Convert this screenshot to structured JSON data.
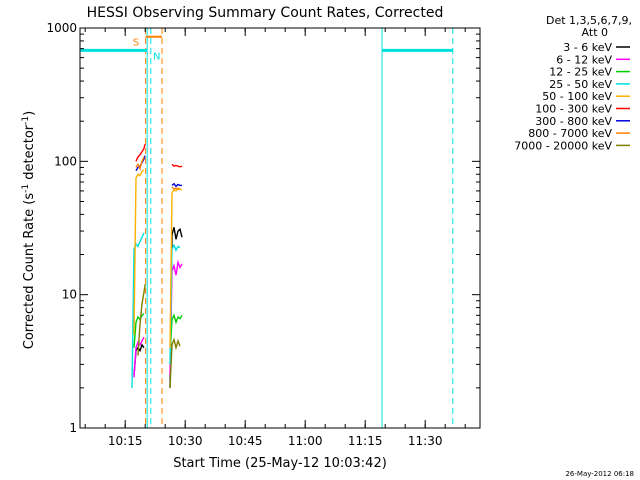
{
  "chart_data": {
    "type": "line",
    "title": "HESSI Observing Summary Count Rates, Corrected",
    "xlabel": "Start Time (25-May-12 10:03:42)",
    "ylabel_main": "Corrected Count Rate (s",
    "ylabel_sup1": "-1",
    "ylabel_mid": " detector",
    "ylabel_sup2": "-1",
    "ylabel_end": ")",
    "y_scale": "log",
    "ylim": [
      1,
      1000
    ],
    "xlim_minutes": [
      0,
      100
    ],
    "x_ticks": [
      {
        "label": "10:15",
        "minute": 11.3
      },
      {
        "label": "10:30",
        "minute": 26.3
      },
      {
        "label": "10:45",
        "minute": 41.3
      },
      {
        "label": "11:00",
        "minute": 56.3
      },
      {
        "label": "11:15",
        "minute": 71.3
      },
      {
        "label": "11:30",
        "minute": 86.3
      }
    ],
    "y_ticks": [
      {
        "label": "1",
        "value": 1
      },
      {
        "label": "10",
        "value": 10
      },
      {
        "label": "100",
        "value": 100
      },
      {
        "label": "1000",
        "value": 1000
      }
    ],
    "legend_header": [
      "Det 1,3,5,6,7,9,",
      "Att 0"
    ],
    "legend_position": "right",
    "series": [
      {
        "name": "3 - 6 keV",
        "color": "#000000",
        "segments": [
          [
            [
              13.5,
              2.5
            ],
            [
              14.0,
              3.8
            ],
            [
              14.5,
              4.0
            ],
            [
              15.0,
              3.8
            ],
            [
              15.5,
              4.2
            ],
            [
              16.0,
              4.0
            ]
          ],
          [
            [
              22.5,
              2.0
            ],
            [
              23.0,
              28
            ],
            [
              23.5,
              32
            ],
            [
              24.0,
              26
            ],
            [
              24.5,
              30
            ],
            [
              25.0,
              31
            ],
            [
              25.5,
              27
            ]
          ]
        ]
      },
      {
        "name": "6 - 12 keV",
        "color": "#ff00ff",
        "segments": [
          [
            [
              13.5,
              2.4
            ],
            [
              14.0,
              4.0
            ],
            [
              14.5,
              4.4
            ],
            [
              15.0,
              4.2
            ],
            [
              15.5,
              4.5
            ],
            [
              16.0,
              4.8
            ]
          ],
          [
            [
              22.5,
              2.5
            ],
            [
              23.0,
              15
            ],
            [
              23.5,
              16.5
            ],
            [
              24.0,
              14
            ],
            [
              24.5,
              17.5
            ],
            [
              25.0,
              16
            ],
            [
              25.5,
              17
            ]
          ]
        ]
      },
      {
        "name": "12 - 25 keV",
        "color": "#00cc00",
        "segments": [
          [
            [
              13.5,
              4.0
            ],
            [
              14.0,
              6.2
            ],
            [
              14.5,
              6.8
            ],
            [
              15.0,
              6.5
            ],
            [
              15.5,
              7.0
            ],
            [
              16.0,
              7.2
            ]
          ],
          [
            [
              22.5,
              3.5
            ],
            [
              23.0,
              6.5
            ],
            [
              23.5,
              7.0
            ],
            [
              24.0,
              6.2
            ],
            [
              24.5,
              6.8
            ],
            [
              25.0,
              6.6
            ],
            [
              25.5,
              7.0
            ]
          ]
        ]
      },
      {
        "name": "25 - 50 keV",
        "color": "#00e0e0",
        "segments": [
          [
            [
              13.0,
              2.0
            ],
            [
              13.5,
              22
            ],
            [
              14.0,
              24
            ],
            [
              14.5,
              23
            ],
            [
              15.0,
              25
            ],
            [
              15.5,
              27
            ],
            [
              16.0,
              29
            ]
          ],
          [
            [
              22.5,
              3.0
            ],
            [
              23.0,
              22
            ],
            [
              23.5,
              23.5
            ],
            [
              24.0,
              21.5
            ],
            [
              24.5,
              23
            ],
            [
              25.0,
              22.5
            ]
          ]
        ]
      },
      {
        "name": "50 - 100 keV",
        "color": "#ffb000",
        "segments": [
          [
            [
              13.5,
              5.0
            ],
            [
              14.0,
              75
            ],
            [
              14.5,
              80
            ],
            [
              15.0,
              78
            ],
            [
              15.5,
              84
            ],
            [
              16.0,
              86
            ]
          ],
          [
            [
              22.5,
              4.0
            ],
            [
              23.0,
              58
            ],
            [
              23.5,
              61
            ],
            [
              24.0,
              60
            ],
            [
              24.5,
              63
            ],
            [
              25.0,
              62
            ],
            [
              25.5,
              61
            ]
          ]
        ]
      },
      {
        "name": "100 - 300 keV",
        "color": "#ff0000",
        "segments": [
          [
            [
              14.0,
              100
            ],
            [
              14.5,
              108
            ],
            [
              15.0,
              112
            ],
            [
              15.5,
              118
            ],
            [
              16.0,
              125
            ],
            [
              16.3,
              135
            ]
          ],
          [
            [
              23.0,
              95
            ],
            [
              23.5,
              92
            ],
            [
              24.0,
              93
            ],
            [
              24.5,
              92
            ],
            [
              25.0,
              91
            ],
            [
              25.5,
              92
            ]
          ]
        ]
      },
      {
        "name": "300 - 800 keV",
        "color": "#0000dd",
        "segments": [
          [
            [
              14.0,
              85
            ],
            [
              14.5,
              90
            ],
            [
              15.0,
              92
            ],
            [
              15.5,
              98
            ],
            [
              16.0,
              104
            ],
            [
              16.3,
              110
            ]
          ],
          [
            [
              23.0,
              66
            ],
            [
              23.5,
              68
            ],
            [
              24.0,
              65
            ],
            [
              24.5,
              67
            ],
            [
              25.0,
              66
            ],
            [
              25.5,
              66
            ]
          ]
        ]
      },
      {
        "name": "800 - 7000 keV",
        "color": "#ff8000",
        "segments": [
          [
            [
              14.0,
              90
            ],
            [
              14.5,
              95
            ],
            [
              15.0,
              88
            ],
            [
              15.5,
              100
            ],
            [
              16.0,
              108
            ]
          ],
          [
            [
              23.0,
              64
            ],
            [
              23.5,
              62
            ],
            [
              24.0,
              63
            ],
            [
              24.5,
              62
            ],
            [
              25.0,
              62
            ]
          ]
        ]
      },
      {
        "name": "7000 - 20000 keV",
        "color": "#808000",
        "segments": [
          [
            [
              14.5,
              3.5
            ],
            [
              15.0,
              6.0
            ],
            [
              15.5,
              8.5
            ],
            [
              16.0,
              10.5
            ],
            [
              16.3,
              12.0
            ]
          ],
          [
            [
              22.5,
              2.0
            ],
            [
              23.0,
              4.2
            ],
            [
              23.5,
              4.6
            ],
            [
              24.0,
              4.0
            ],
            [
              24.5,
              4.5
            ],
            [
              25.0,
              4.1
            ]
          ]
        ]
      }
    ],
    "state_bars": [
      {
        "color": "#00e0e0",
        "y": 680,
        "x_start": 0,
        "x_end": 16.8
      },
      {
        "color": "#00e0e0",
        "y": 680,
        "x_start": 75.5,
        "x_end": 93.2
      }
    ],
    "state_lines": [
      {
        "color": "#00e0e0",
        "x": 0,
        "style": "solid"
      },
      {
        "color": "#00e0e0",
        "x": 16.8,
        "style": "solid"
      },
      {
        "color": "#00e0e0",
        "x": 75.5,
        "style": "solid"
      },
      {
        "color": "#00e0e0",
        "x": 93.2,
        "style": "dashed"
      },
      {
        "color": "#00e0e0",
        "x": 17.7,
        "style": "dashed"
      },
      {
        "color": "#ff8000",
        "x": 16.4,
        "style": "dashed"
      },
      {
        "color": "#ff8000",
        "x": 20.5,
        "style": "dashed"
      }
    ],
    "annotations": [
      {
        "text": "S",
        "color": "#ff8000",
        "x": 14.0,
        "y": 790
      },
      {
        "text": "N",
        "color": "#00e0e0",
        "x": 19.2,
        "y": 620
      }
    ],
    "saa_bar": {
      "color": "#ff8000",
      "x_start": 16.4,
      "x_end": 20.5,
      "y": 860
    }
  },
  "footer_timestamp": "26-May-2012 06:18"
}
